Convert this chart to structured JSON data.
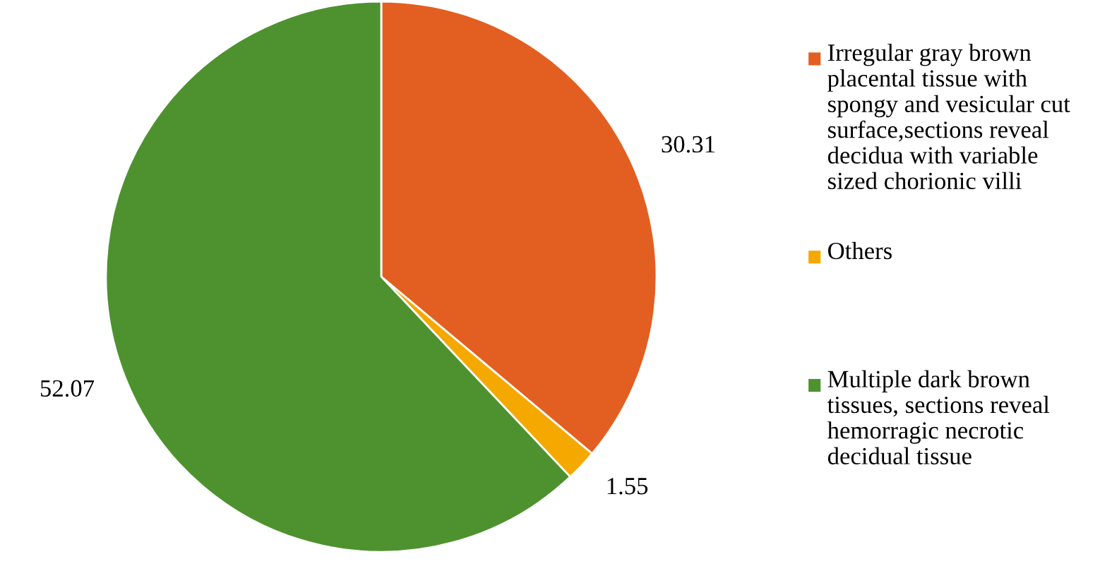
{
  "chart_data": {
    "type": "pie",
    "categories": [
      "Irregular gray brown placental tissue with spongy and vesicular cut surface,sections reveal decidua with variable sized chorionic villi",
      "Others",
      "Multiple dark brown tissues, sections reveal hemorragic necrotic decidual tissue"
    ],
    "values": [
      30.31,
      1.55,
      52.07
    ],
    "colors": [
      "#e35f21",
      "#f5a800",
      "#4e922f"
    ],
    "data_labels": true,
    "legend": "right"
  }
}
